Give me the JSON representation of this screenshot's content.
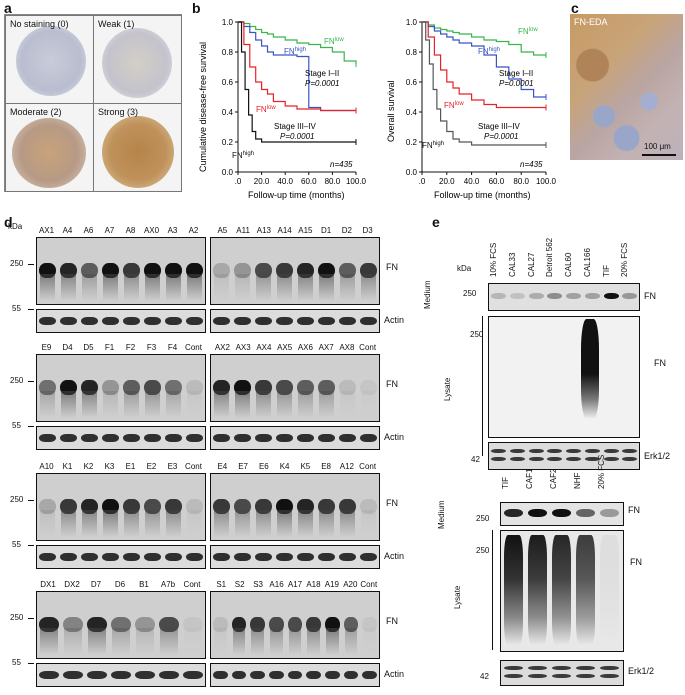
{
  "panels": {
    "a": {
      "label": "a",
      "cores": [
        "No staining (0)",
        "Weak (1)",
        "Moderate (2)",
        "Strong (3)"
      ]
    },
    "b": {
      "label": "b",
      "km1": {
        "ylabel": "Cumulative disease-free survival",
        "xlabel": "Follow-up time (months)",
        "yticks": [
          "1.0",
          "0.8",
          "0.6",
          "0.4",
          "0.2",
          "0.0"
        ],
        "xticks": [
          ".0",
          "20.0",
          "40.0",
          "60.0",
          "80.0",
          "100.0"
        ],
        "stage1_label": "Stage I–II",
        "stage1_p": "P=0.0001",
        "stage3_label": "Stage III–IV",
        "stage3_p": "P=0.0001",
        "n": "n=435",
        "fn_low_a": "FN",
        "fn_low_a_sup": "low",
        "fn_high_a": "FN",
        "fn_high_a_sup": "high",
        "fn_low_b": "FN",
        "fn_low_b_sup": "low",
        "fn_high_b": "FN",
        "fn_high_b_sup": "high"
      },
      "km2": {
        "ylabel": "Overall survival",
        "xlabel": "Follow-up time (months)",
        "yticks": [
          "1.0",
          "0.8",
          "0.6",
          "0.4",
          "0.2",
          "0.0"
        ],
        "xticks": [
          ".0",
          "20.0",
          "40.0",
          "60.0",
          "80.0",
          "100.0"
        ],
        "stage1_label": "Stage I–II",
        "stage1_p": "P=0.0001",
        "stage3_label": "Stage III–IV",
        "stage3_p": "P=0.0001",
        "n": "n=435",
        "fn_low_a": "FN",
        "fn_low_a_sup": "low",
        "fn_high_a": "FN",
        "fn_high_a_sup": "high",
        "fn_low_b": "FN",
        "fn_low_b_sup": "low",
        "fn_high_b": "FN",
        "fn_high_b_sup": "high"
      }
    },
    "c": {
      "label": "c",
      "stain": "FN-EDA",
      "scale": "100 μm"
    },
    "d": {
      "label": "d",
      "kda": "kDa",
      "fn": "FN",
      "actin": "Actin",
      "rows": [
        {
          "left": [
            "AX1",
            "A4",
            "A6",
            "A7",
            "A8",
            "AX0",
            "A3",
            "A2"
          ],
          "right": [
            "A5",
            "A11",
            "A13",
            "A14",
            "A15",
            "D1",
            "D2",
            "D3"
          ]
        },
        {
          "left": [
            "E9",
            "D4",
            "D5",
            "F1",
            "F2",
            "F3",
            "F4",
            "Cont"
          ],
          "right": [
            "AX2",
            "AX3",
            "AX4",
            "AX5",
            "AX6",
            "AX7",
            "AX8",
            "Cont"
          ]
        },
        {
          "left": [
            "A10",
            "K1",
            "K2",
            "K3",
            "E1",
            "E2",
            "E3",
            "Cont"
          ],
          "right": [
            "E4",
            "E7",
            "E6",
            "K4",
            "K5",
            "E8",
            "A12",
            "Cont"
          ]
        },
        {
          "left": [
            "DX1",
            "DX2",
            "D7",
            "D6",
            "B1",
            "A7b",
            "Cont"
          ],
          "right": [
            "S1",
            "S2",
            "S3",
            "A16",
            "A17",
            "A18",
            "A19",
            "A20",
            "Cont"
          ]
        }
      ],
      "marker_250": "250",
      "marker_55": "55"
    },
    "e": {
      "label": "e",
      "kda": "kDa",
      "top_lanes": [
        "10% FCS",
        "CAL33",
        "CAL27",
        "Detroit 562",
        "CAL60",
        "CAL166",
        "TIF",
        "20% FCS"
      ],
      "bottom_lanes": [
        "TIF",
        "CAF1",
        "CAF2",
        "NHF",
        "20% FCS"
      ],
      "medium": "Medium",
      "lysate": "Lysate",
      "fn": "FN",
      "erk": "Erk1/2",
      "m250": "250",
      "m42": "42"
    }
  },
  "chart_data": [
    {
      "type": "line",
      "title": "",
      "xlabel": "Follow-up time (months)",
      "ylabel": "Cumulative disease-free survival",
      "xlim": [
        0,
        100
      ],
      "ylim": [
        0,
        1
      ],
      "series": [
        {
          "name": "FN low (Stage I–II)",
          "color": "#39b54a",
          "x": [
            0,
            5,
            10,
            15,
            20,
            25,
            30,
            40,
            50,
            60,
            70,
            80,
            90,
            100
          ],
          "y": [
            1.0,
            0.99,
            0.97,
            0.95,
            0.93,
            0.92,
            0.9,
            0.88,
            0.86,
            0.85,
            0.83,
            0.8,
            0.74,
            0.72
          ]
        },
        {
          "name": "FN high (Stage I–II)",
          "color": "#3a55c8",
          "x": [
            0,
            5,
            10,
            15,
            20,
            25,
            30,
            40,
            50,
            60,
            70,
            80,
            90,
            100
          ],
          "y": [
            1.0,
            0.97,
            0.93,
            0.88,
            0.84,
            0.8,
            0.78,
            0.78,
            0.77,
            0.43,
            0.41,
            0.41,
            0.41,
            0.41
          ]
        },
        {
          "name": "FN low (Stage III–IV)",
          "color": "#e8212a",
          "x": [
            0,
            5,
            10,
            15,
            20,
            25,
            30,
            40,
            50,
            60,
            70,
            80,
            90,
            100
          ],
          "y": [
            1.0,
            0.85,
            0.7,
            0.6,
            0.55,
            0.52,
            0.47,
            0.44,
            0.42,
            0.42,
            0.41,
            0.41,
            0.41,
            0.41
          ]
        },
        {
          "name": "FN high (Stage III–IV)",
          "color": "#111111",
          "x": [
            0,
            3,
            6,
            9,
            12,
            15,
            20,
            30,
            40,
            60,
            80,
            100
          ],
          "y": [
            1.0,
            0.8,
            0.55,
            0.38,
            0.27,
            0.22,
            0.2,
            0.2,
            0.2,
            0.2,
            0.2,
            0.2
          ]
        }
      ]
    },
    {
      "type": "line",
      "title": "",
      "xlabel": "Follow-up time (months)",
      "ylabel": "Overall survival",
      "xlim": [
        0,
        100
      ],
      "ylim": [
        0,
        1
      ],
      "series": [
        {
          "name": "FN low (Stage I–II)",
          "color": "#39b54a",
          "x": [
            0,
            5,
            10,
            15,
            20,
            25,
            30,
            40,
            50,
            60,
            70,
            80,
            90,
            100
          ],
          "y": [
            1.0,
            0.98,
            0.96,
            0.95,
            0.94,
            0.93,
            0.92,
            0.9,
            0.88,
            0.87,
            0.85,
            0.8,
            0.78,
            0.78
          ]
        },
        {
          "name": "FN high (Stage I–II)",
          "color": "#3a55c8",
          "x": [
            0,
            5,
            10,
            15,
            20,
            25,
            30,
            40,
            50,
            60,
            70,
            80,
            90,
            100
          ],
          "y": [
            1.0,
            0.97,
            0.94,
            0.92,
            0.9,
            0.88,
            0.86,
            0.84,
            0.78,
            0.7,
            0.62,
            0.55,
            0.5,
            0.5
          ]
        },
        {
          "name": "FN low (Stage III–IV)",
          "color": "#e8212a",
          "x": [
            0,
            5,
            10,
            15,
            20,
            25,
            30,
            40,
            50,
            60,
            70,
            80,
            90,
            100
          ],
          "y": [
            1.0,
            0.9,
            0.78,
            0.68,
            0.6,
            0.56,
            0.52,
            0.48,
            0.45,
            0.43,
            0.43,
            0.43,
            0.43,
            0.43
          ]
        },
        {
          "name": "FN high (Stage III–IV)",
          "color": "#555555",
          "x": [
            0,
            3,
            6,
            9,
            12,
            15,
            20,
            25,
            30,
            40,
            60,
            80,
            100
          ],
          "y": [
            1.0,
            0.88,
            0.72,
            0.55,
            0.42,
            0.34,
            0.27,
            0.22,
            0.2,
            0.18,
            0.18,
            0.18,
            0.18
          ]
        }
      ]
    }
  ]
}
